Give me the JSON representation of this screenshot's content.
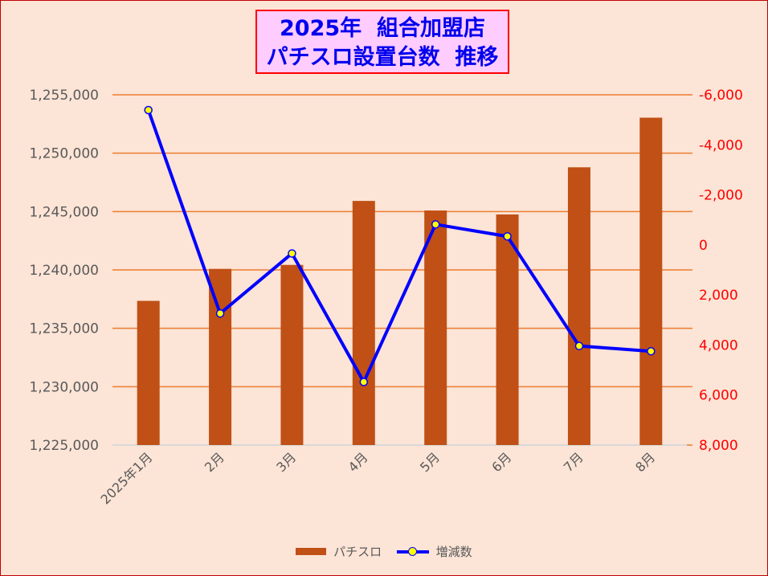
{
  "chart_data": {
    "type": "bar+line",
    "title": [
      "2025年  組合加盟店",
      "パチスロ設置台数  推移"
    ],
    "categories": [
      "2025年1月",
      "2月",
      "3月",
      "4月",
      "5月",
      "6月",
      "7月",
      "8月"
    ],
    "series": [
      {
        "name": "パチスロ",
        "type": "bar",
        "axis": "left",
        "color": "#C05016",
        "values": [
          1237350,
          1240090,
          1240430,
          1245910,
          1245090,
          1244750,
          1248790,
          1253040
        ]
      },
      {
        "name": "増減数",
        "type": "line",
        "axis": "right",
        "color": "#0000FF",
        "marker_fill": "#FFFF00",
        "values": [
          -5390,
          2740,
          340,
          5480,
          -820,
          -340,
          4040,
          4250
        ]
      }
    ],
    "left_axis": {
      "min": 1225000,
      "max": 1255000,
      "step": 5000,
      "tick_labels": [
        "1,225,000",
        "1,230,000",
        "1,235,000",
        "1,240,000",
        "1,245,000",
        "1,250,000",
        "1,255,000"
      ]
    },
    "right_axis": {
      "min": -6000,
      "max": 8000,
      "step": 2000,
      "reversed": true,
      "tick_labels": [
        "-6,000",
        "-4,000",
        "-2,000",
        "0",
        "2,000",
        "4,000",
        "6,000",
        "8,000"
      ]
    },
    "grid": true,
    "grid_color": "#ED7D31",
    "legend_position": "bottom"
  }
}
